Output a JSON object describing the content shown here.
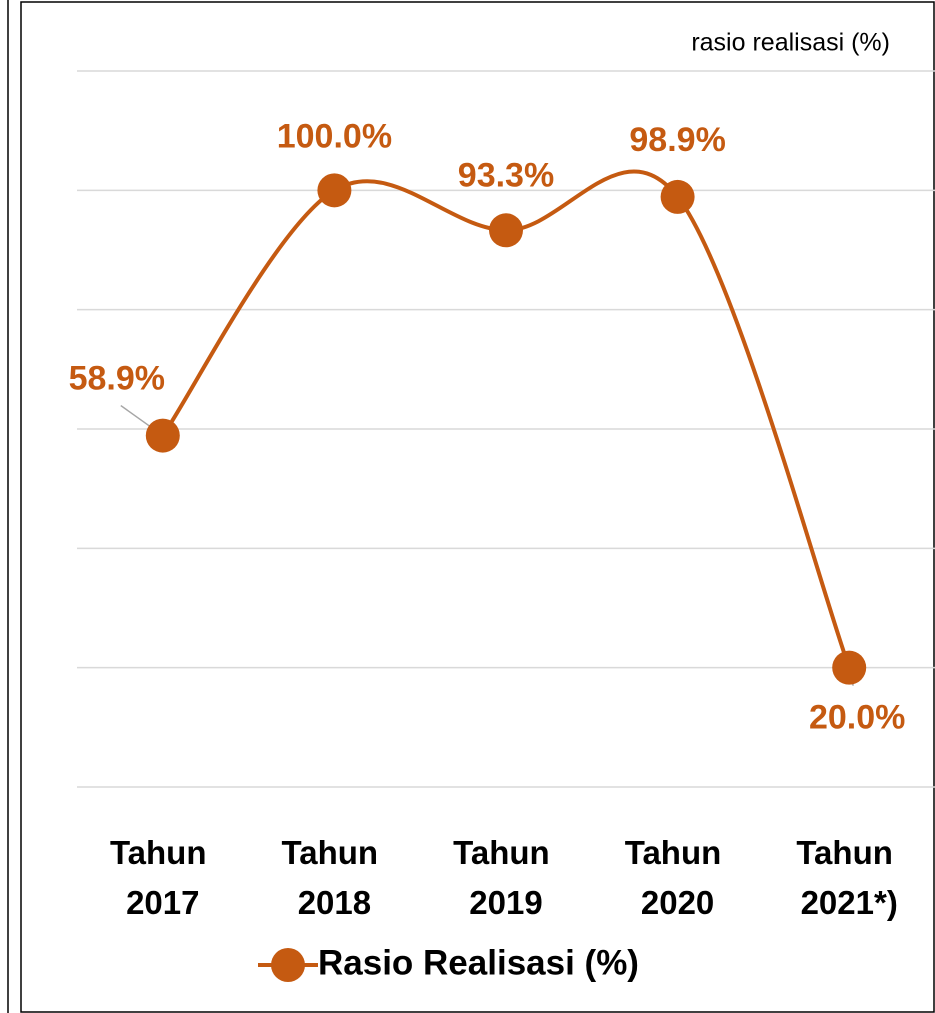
{
  "chart_data": {
    "type": "line",
    "title": "rasio realisasi (%)",
    "categories": [
      "Tahun 2017",
      "Tahun 2018",
      "Tahun 2019",
      "Tahun 2020",
      "Tahun 2021*)"
    ],
    "series": [
      {
        "name": "Rasio Realisasi (%)",
        "color": "#c55a11",
        "values": [
          58.9,
          100.0,
          93.3,
          98.9,
          20.0
        ],
        "value_labels": [
          "58.9%",
          "100.0%",
          "93.3%",
          "98.9%",
          "20.0%"
        ]
      }
    ],
    "ylim": [
      0,
      120
    ],
    "yticks": [
      0,
      20,
      40,
      60,
      80,
      100,
      120
    ],
    "grid": true,
    "smooth": true,
    "legend": "bottom"
  }
}
